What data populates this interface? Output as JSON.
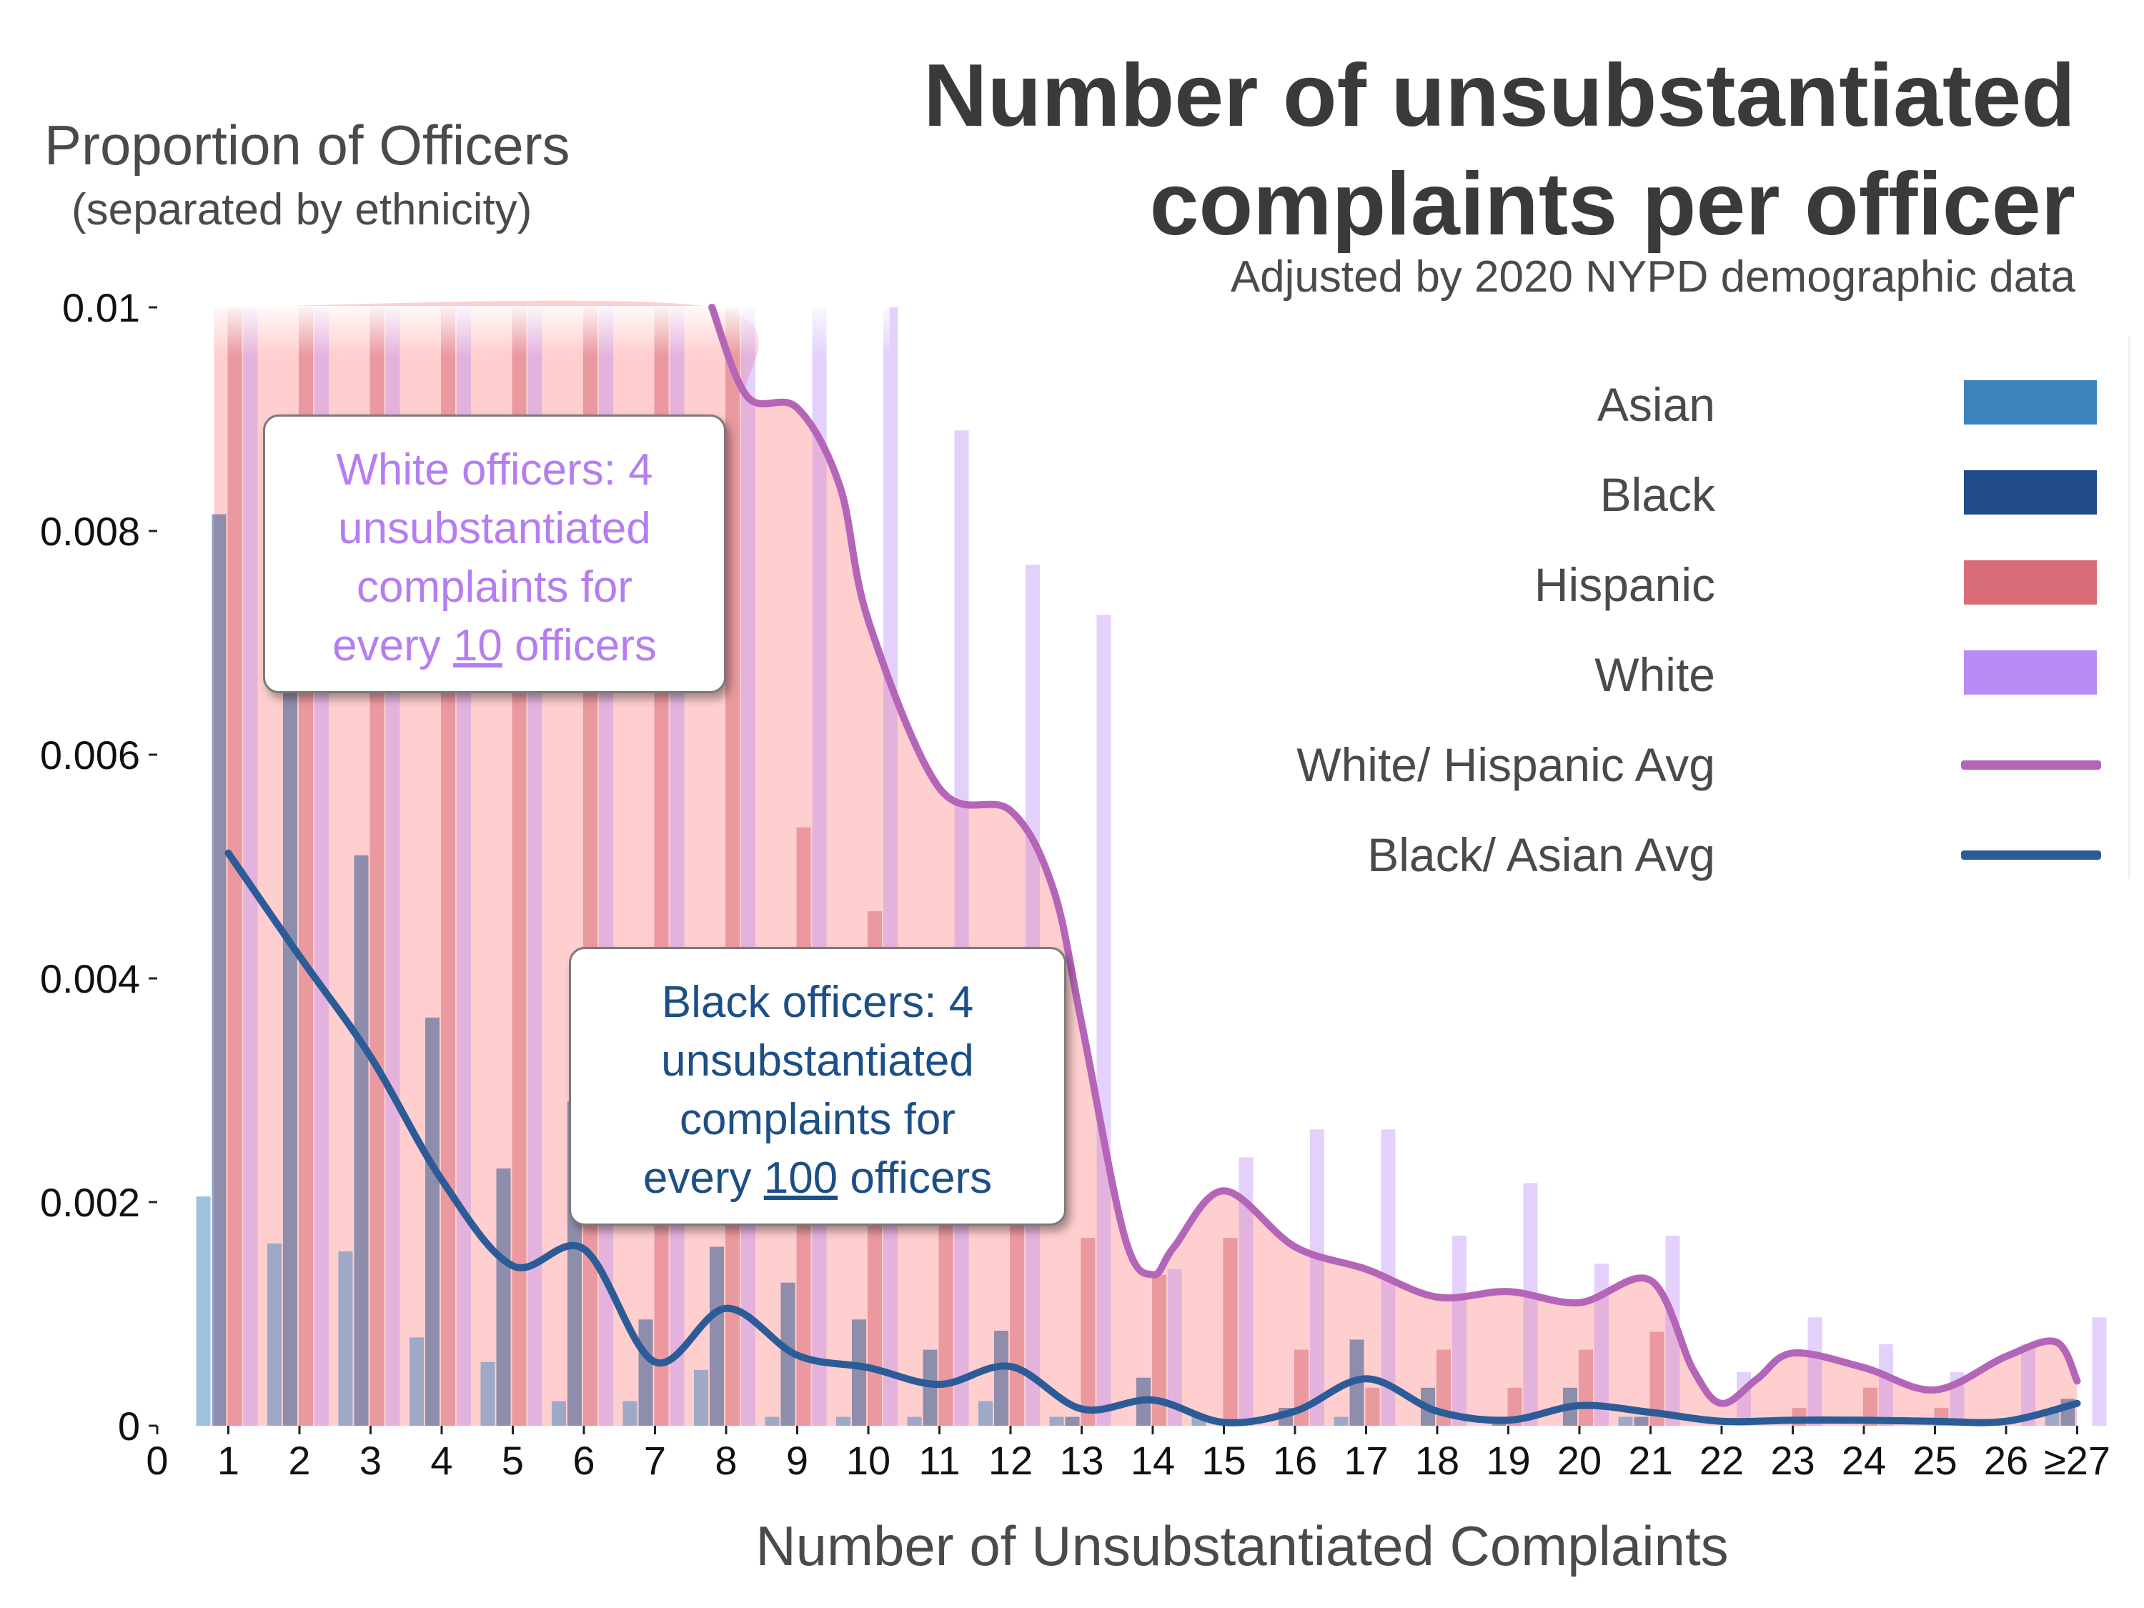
{
  "title_line1": "Number of unsubstantiated",
  "title_line2": "complaints per officer",
  "subtitle": "Adjusted by 2020 NYPD demographic data",
  "ylabel": "Proportion of Officers",
  "ylabel_sub": "(separated by ethnicity)",
  "xlabel": "Number of Unsubstantiated Complaints",
  "callouts": {
    "white_1": "White officers: 4",
    "white_2": "unsubstantiated",
    "white_3": "complaints for",
    "white_4a": "every ",
    "white_num": "10",
    "white_4b": " officers",
    "black_1": "Black officers: 4",
    "black_2": "unsubstantiated",
    "black_3": "complaints for",
    "black_4a": "every ",
    "black_num": "100",
    "black_4b": " officers"
  },
  "legend": {
    "asian": "Asian",
    "black": "Black",
    "hispanic": "Hispanic",
    "white": "White",
    "wh_avg": "White/ Hispanic Avg",
    "ba_avg": "Black/ Asian Avg"
  },
  "colors": {
    "asian": "#3b84bd",
    "black": "#1f4b8a",
    "hispanic": "#d86d78",
    "white": "#b98cf5",
    "wh_avg": "#b565b8",
    "ba_avg": "#2c5c97",
    "band": "#ffb3b3"
  },
  "chart_data": {
    "type": "bar",
    "x_categories": [
      "1",
      "2",
      "3",
      "4",
      "5",
      "6",
      "7",
      "8",
      "9",
      "10",
      "11",
      "12",
      "13",
      "14",
      "15",
      "16",
      "17",
      "18",
      "19",
      "20",
      "21",
      "22",
      "23",
      "24",
      "25",
      "26",
      "≥27"
    ],
    "x_ticks": [
      "0",
      "1",
      "2",
      "3",
      "4",
      "5",
      "6",
      "7",
      "8",
      "9",
      "10",
      "11",
      "12",
      "13",
      "14",
      "15",
      "16",
      "17",
      "18",
      "19",
      "20",
      "21",
      "22",
      "23",
      "24",
      "25",
      "26",
      "≥27"
    ],
    "y_ticks": [
      "0",
      "0.002",
      "0.004",
      "0.006",
      "0.008",
      "0.01"
    ],
    "ylim": [
      0,
      0.01
    ],
    "series": [
      {
        "name": "Asian",
        "key": "asian",
        "values": [
          0.00205,
          0.00163,
          0.00156,
          0.00079,
          0.00057,
          0.00022,
          0.00022,
          0.0005,
          8e-05,
          8e-05,
          8e-05,
          0.00022,
          8e-05,
          0.0,
          8e-05,
          0.0,
          8e-05,
          0.0,
          0.0,
          0.0,
          8e-05,
          0.0,
          0.0,
          0.0,
          0.0,
          0.0,
          0.00015
        ]
      },
      {
        "name": "Black",
        "key": "black",
        "values": [
          0.00815,
          0.0077,
          0.0051,
          0.00365,
          0.0023,
          0.0029,
          0.00095,
          0.0016,
          0.00128,
          0.00095,
          0.00068,
          0.00085,
          8e-05,
          0.00043,
          0.0,
          0.00016,
          0.00077,
          0.00034,
          8e-05,
          0.00034,
          8e-05,
          0.0,
          0.0,
          0.0,
          0.0,
          0.0,
          0.00024
        ]
      },
      {
        "name": "Hispanic",
        "key": "hispanic",
        "values": [
          0.01,
          0.01,
          0.01,
          0.01,
          0.01,
          0.01,
          0.01,
          0.01,
          0.00535,
          0.0046,
          0.00275,
          0.00265,
          0.00168,
          0.00135,
          0.00168,
          0.00068,
          0.00034,
          0.00068,
          0.00034,
          0.00068,
          0.00084,
          0.0,
          0.00016,
          0.00034,
          0.00016,
          0.0,
          0.0
        ]
      },
      {
        "name": "White",
        "key": "white",
        "values": [
          0.01,
          0.01,
          0.01,
          0.01,
          0.01,
          0.01,
          0.01,
          0.01,
          0.01,
          0.01,
          0.0089,
          0.0077,
          0.00725,
          0.0014,
          0.0024,
          0.00265,
          0.00265,
          0.0017,
          0.00217,
          0.00145,
          0.0017,
          0.00048,
          0.00097,
          0.00073,
          0.00048,
          0.00073,
          0.00097
        ]
      }
    ],
    "lines": [
      {
        "name": "White/ Hispanic Avg",
        "key": "wh_avg",
        "x": [
          7.8,
          8.3,
          9,
          9.6,
          10,
          11,
          12,
          12.6,
          13,
          13.6,
          14,
          14.3,
          15,
          16,
          17,
          18,
          19,
          20,
          21,
          21.6,
          22,
          22.5,
          23,
          24,
          25,
          26,
          26.7,
          27
        ],
        "y": [
          0.0101,
          0.0092,
          0.0091,
          0.0084,
          0.0072,
          0.0057,
          0.0055,
          0.0048,
          0.0036,
          0.0017,
          0.00135,
          0.0016,
          0.0021,
          0.0016,
          0.0014,
          0.00115,
          0.0012,
          0.0011,
          0.0013,
          0.0005,
          0.0002,
          0.00042,
          0.00065,
          0.00052,
          0.00032,
          0.00062,
          0.00075,
          0.0004
        ]
      },
      {
        "name": "Black/ Asian Avg",
        "key": "ba_avg",
        "x": [
          1,
          2,
          3,
          4,
          5,
          6,
          7,
          8,
          9,
          10,
          11,
          12,
          13,
          14,
          15,
          16,
          17,
          18,
          19,
          20,
          21,
          22,
          23,
          24,
          25,
          26,
          27
        ],
        "y": [
          0.00512,
          0.0042,
          0.0033,
          0.0022,
          0.00143,
          0.00158,
          0.00057,
          0.00105,
          0.00063,
          0.00052,
          0.00037,
          0.00053,
          0.00015,
          0.00023,
          3e-05,
          0.00013,
          0.00042,
          0.00013,
          5e-05,
          0.00018,
          0.00012,
          4e-05,
          5e-05,
          5e-05,
          4e-05,
          4e-05,
          0.0002
        ]
      }
    ],
    "grid": false,
    "legend_position": "right"
  }
}
